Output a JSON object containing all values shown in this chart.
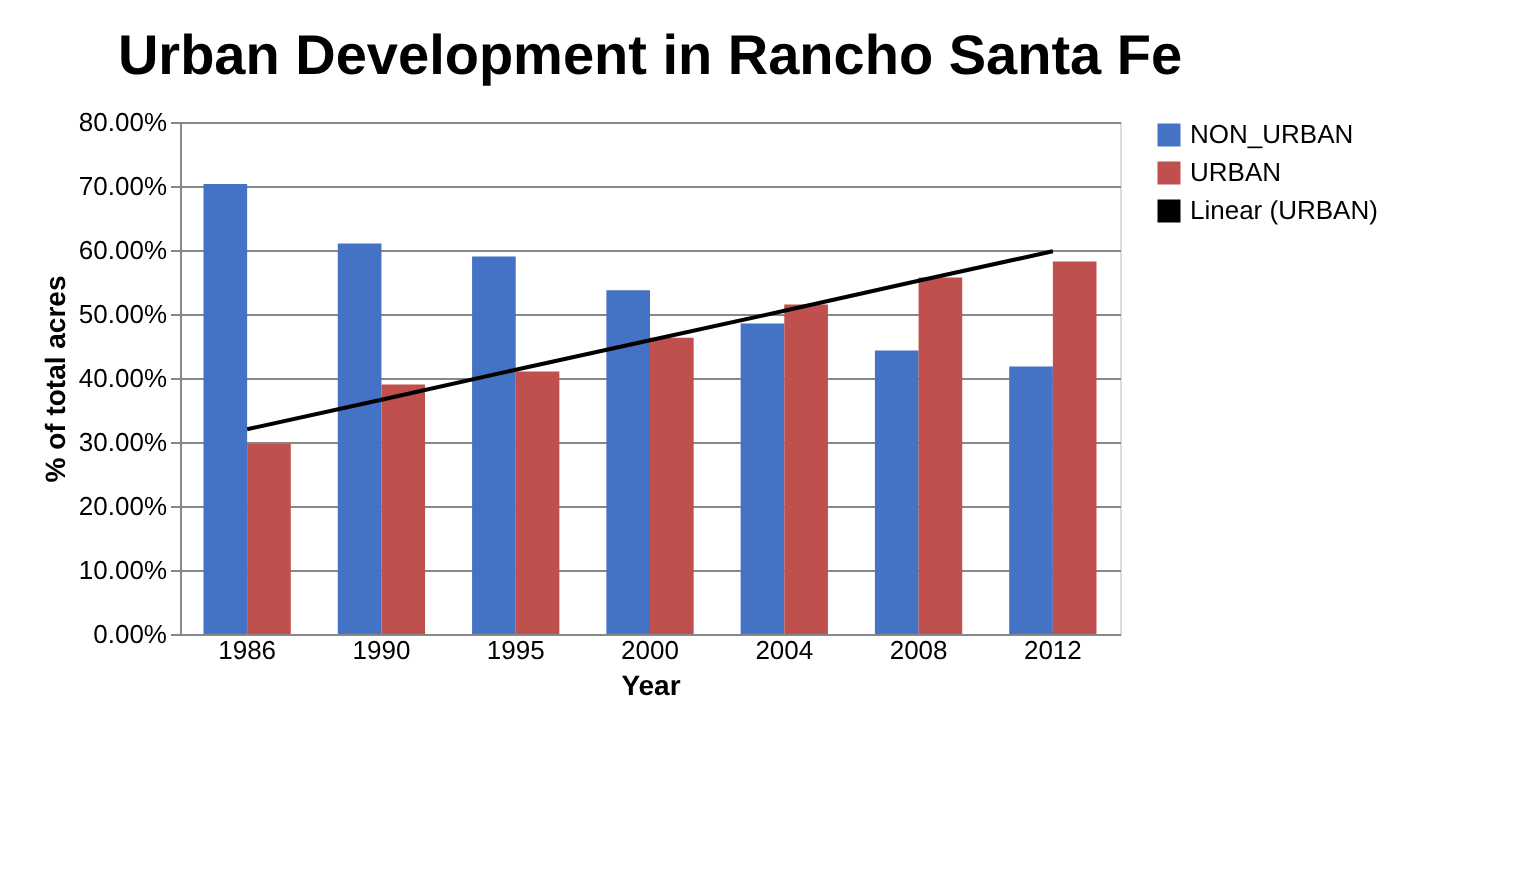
{
  "chart_data": {
    "type": "bar",
    "title": "Urban Development in Rancho Santa Fe",
    "xlabel": "Year",
    "ylabel": "% of total acres",
    "categories": [
      "1986",
      "1990",
      "1995",
      "2000",
      "2004",
      "2008",
      "2012"
    ],
    "series": [
      {
        "name": "NON_URBAN",
        "color": "#4472c4",
        "values": [
          70.3,
          61.0,
          59.0,
          53.7,
          48.5,
          44.3,
          41.8
        ]
      },
      {
        "name": "URBAN",
        "color": "#c0504d",
        "values": [
          29.7,
          39.0,
          41.0,
          46.3,
          51.5,
          55.7,
          58.2
        ]
      },
      {
        "name": "Linear (URBAN)",
        "type": "line",
        "color": "#000000",
        "values": [
          32.0,
          36.6,
          41.3,
          45.9,
          50.5,
          55.2,
          59.8
        ]
      }
    ],
    "ylim": [
      0,
      80
    ],
    "yticks": [
      {
        "value": 0,
        "label": "0.00%"
      },
      {
        "value": 10,
        "label": "10.00%"
      },
      {
        "value": 20,
        "label": "20.00%"
      },
      {
        "value": 30,
        "label": "30.00%"
      },
      {
        "value": 40,
        "label": "40.00%"
      },
      {
        "value": 50,
        "label": "50.00%"
      },
      {
        "value": 60,
        "label": "60.00%"
      },
      {
        "value": 70,
        "label": "70.00%"
      },
      {
        "value": 80,
        "label": "80.00%"
      }
    ],
    "grid": "y",
    "legend": "right"
  }
}
